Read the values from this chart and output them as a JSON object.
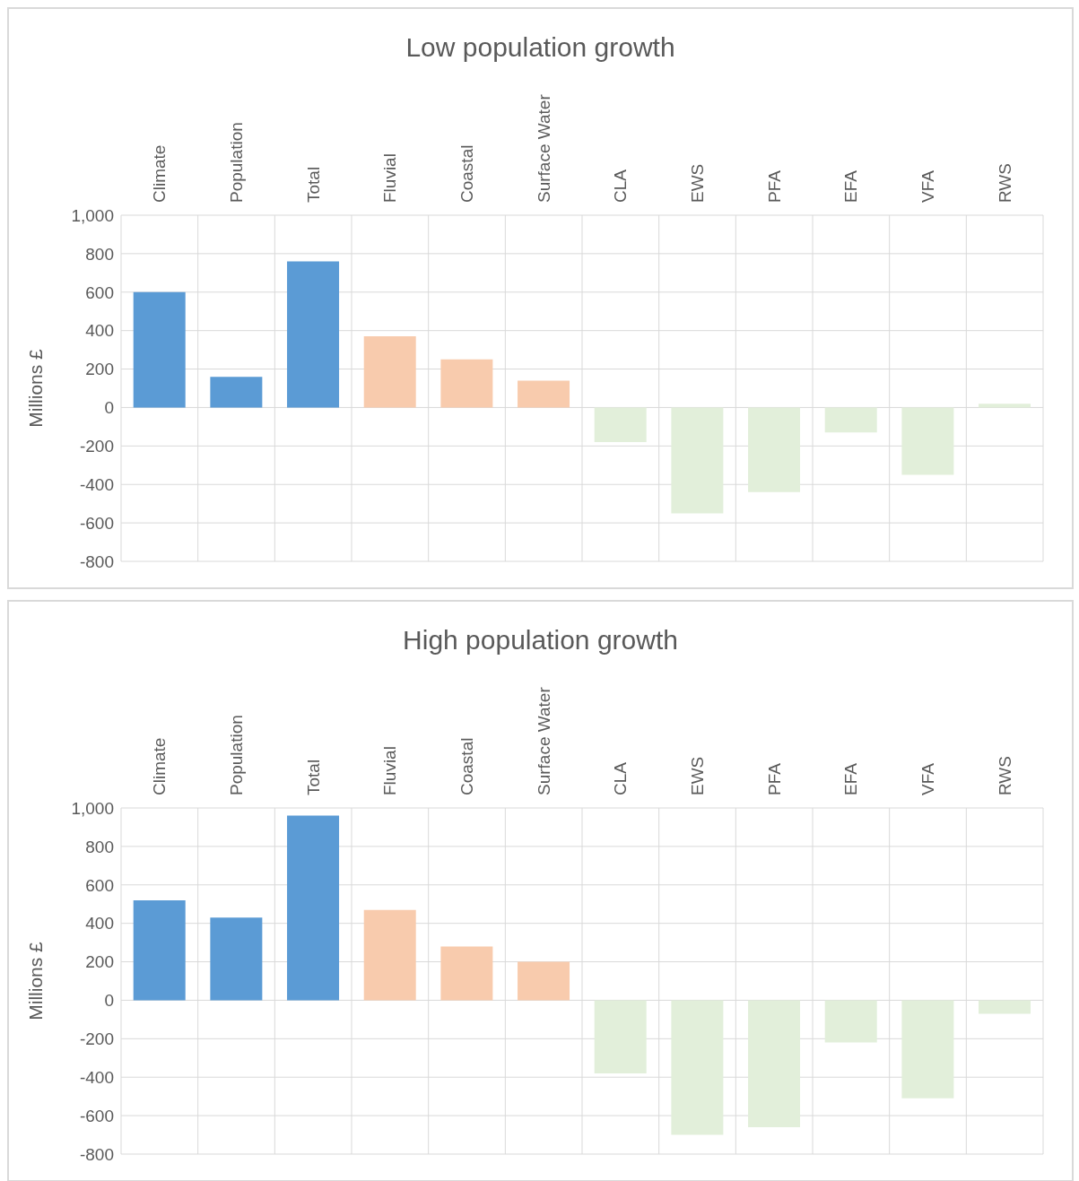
{
  "chart_data": [
    {
      "type": "bar",
      "title": "Low population growth",
      "ylabel": "Millions £",
      "categories": [
        "Climate",
        "Population",
        "Total",
        "Fluvial",
        "Coastal",
        "Surface Water",
        "CLA",
        "EWS",
        "PFA",
        "EFA",
        "VFA",
        "RWS"
      ],
      "values": [
        600,
        160,
        760,
        370,
        250,
        140,
        -180,
        -550,
        -440,
        -130,
        -350,
        20
      ],
      "colors": [
        "#5b9bd5",
        "#5b9bd5",
        "#5b9bd5",
        "#f8cbad",
        "#f8cbad",
        "#f8cbad",
        "#e2efda",
        "#e2efda",
        "#e2efda",
        "#e2efda",
        "#e2efda",
        "#e2efda"
      ],
      "ylim": [
        -800,
        1000
      ],
      "yticks": [
        -800,
        -600,
        -400,
        -200,
        0,
        200,
        400,
        600,
        800,
        {
          "value": 1000,
          "label": "1,000"
        }
      ],
      "grid": true
    },
    {
      "type": "bar",
      "title": "High population growth",
      "ylabel": "Millions £",
      "categories": [
        "Climate",
        "Population",
        "Total",
        "Fluvial",
        "Coastal",
        "Surface Water",
        "CLA",
        "EWS",
        "PFA",
        "EFA",
        "VFA",
        "RWS"
      ],
      "values": [
        520,
        430,
        960,
        470,
        280,
        200,
        -380,
        -700,
        -660,
        -220,
        -510,
        -70
      ],
      "colors": [
        "#5b9bd5",
        "#5b9bd5",
        "#5b9bd5",
        "#f8cbad",
        "#f8cbad",
        "#f8cbad",
        "#e2efda",
        "#e2efda",
        "#e2efda",
        "#e2efda",
        "#e2efda",
        "#e2efda"
      ],
      "ylim": [
        -800,
        1000
      ],
      "yticks": [
        -800,
        -600,
        -400,
        -200,
        0,
        200,
        400,
        600,
        800,
        {
          "value": 1000,
          "label": "1,000"
        }
      ],
      "grid": true
    }
  ]
}
